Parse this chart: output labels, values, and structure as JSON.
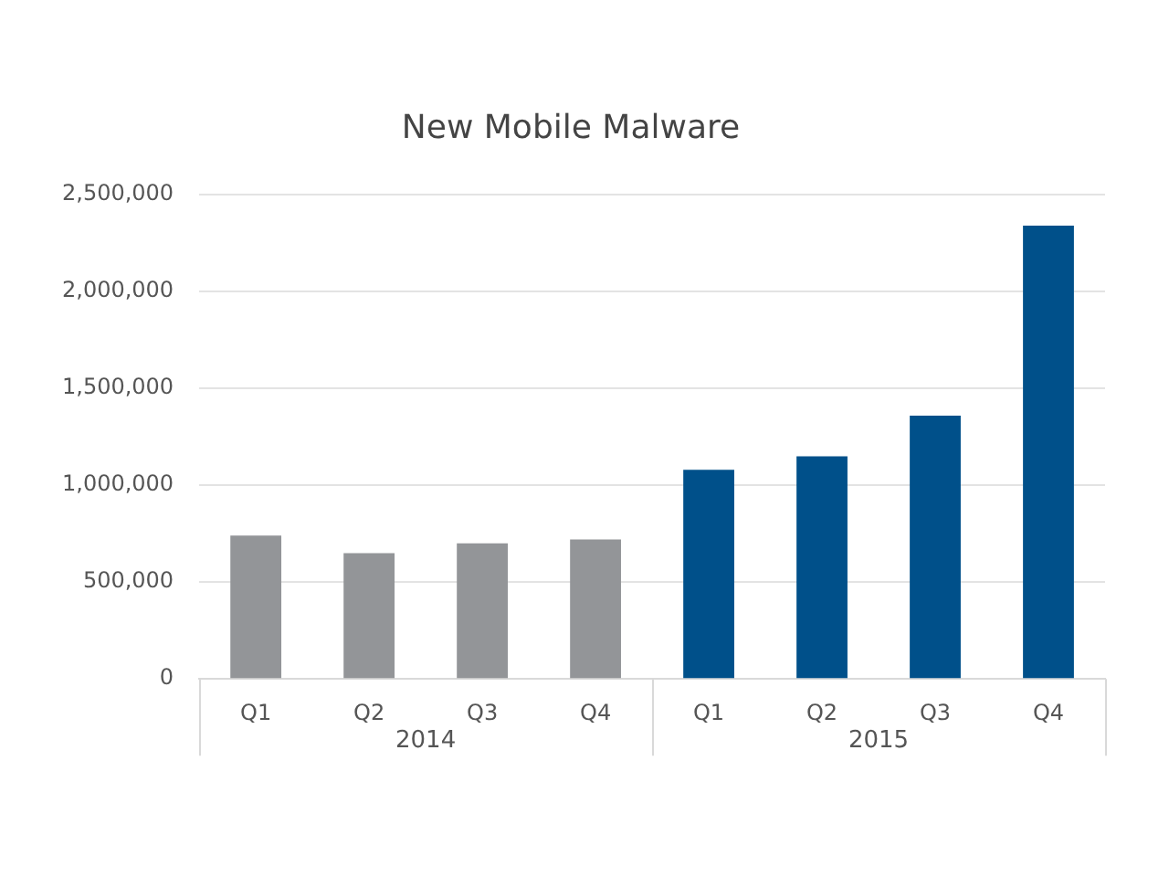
{
  "chart_data": {
    "type": "bar",
    "title": "New Mobile Malware",
    "categories": [
      "Q1",
      "Q2",
      "Q3",
      "Q4",
      "Q1",
      "Q2",
      "Q3",
      "Q4"
    ],
    "values": [
      740000,
      650000,
      700000,
      720000,
      1080000,
      1150000,
      1360000,
      2340000
    ],
    "colors": [
      "#939598",
      "#939598",
      "#939598",
      "#939598",
      "#00508a",
      "#00508a",
      "#00508a",
      "#00508a"
    ],
    "annotations": [
      "2014",
      "2015"
    ],
    "ylim": [
      0,
      2500000
    ],
    "yticks": [
      0,
      {
        "value": 500000,
        "label": "500,000"
      },
      {
        "value": 1000000,
        "label": "1,000,000"
      },
      {
        "value": 1500000,
        "label": "1,500,000"
      },
      {
        "value": 2000000,
        "label": "2,000,000"
      },
      {
        "value": 2500000,
        "label": "2,500,000"
      }
    ],
    "grid": "y",
    "legend": false
  }
}
